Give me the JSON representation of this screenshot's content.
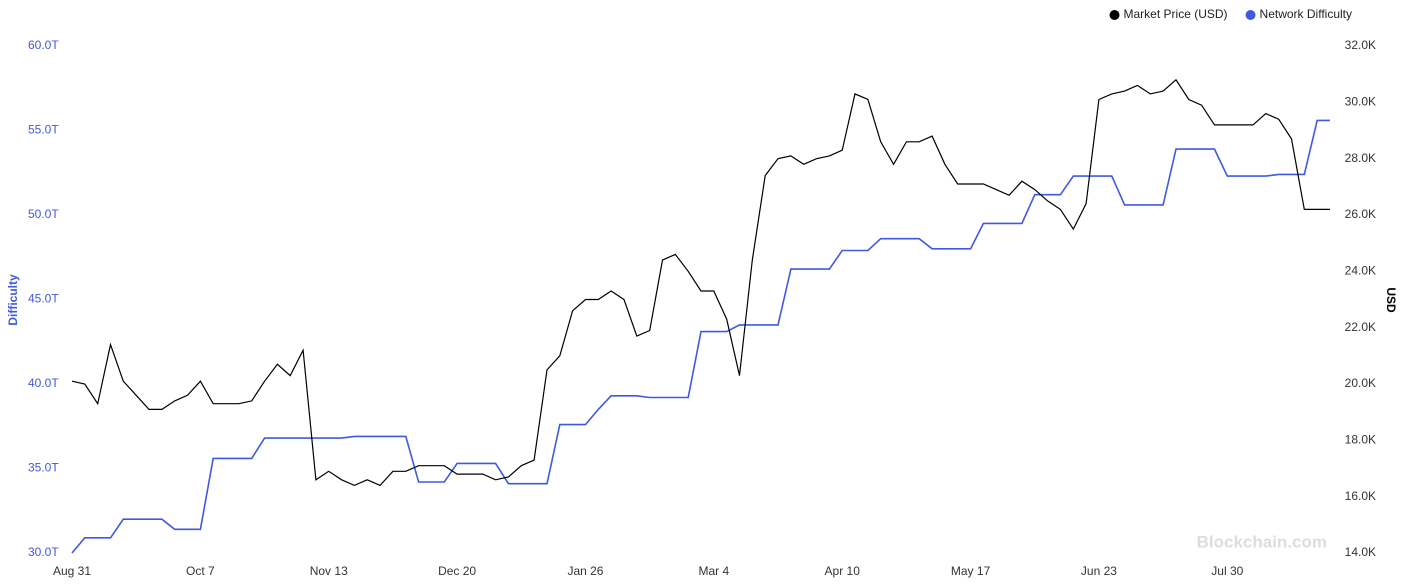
{
  "chart_data": {
    "type": "line",
    "y_axis_label": "Difficulty",
    "y2_axis_label": "USD",
    "watermark": "Blockchain.com",
    "legend": "top-right",
    "categories": [
      "Aug 31",
      null,
      null,
      null,
      null,
      null,
      null,
      null,
      null,
      null,
      "Oct 7",
      null,
      null,
      null,
      null,
      null,
      null,
      null,
      null,
      null,
      "Nov 13",
      null,
      null,
      null,
      null,
      null,
      null,
      null,
      null,
      null,
      "Dec 20",
      null,
      null,
      null,
      null,
      null,
      null,
      null,
      null,
      null,
      "Jan 26",
      null,
      null,
      null,
      null,
      null,
      null,
      null,
      null,
      null,
      "Mar 4",
      null,
      null,
      null,
      null,
      null,
      null,
      null,
      null,
      null,
      "Apr 10",
      null,
      null,
      null,
      null,
      null,
      null,
      null,
      null,
      null,
      "May 17",
      null,
      null,
      null,
      null,
      null,
      null,
      null,
      null,
      null,
      "Jun 23",
      null,
      null,
      null,
      null,
      null,
      null,
      null,
      null,
      null,
      "Jul 30",
      null,
      null,
      null,
      null,
      null,
      null,
      null,
      null
    ],
    "ylim": [
      30,
      60
    ],
    "yticks": [
      {
        "value": 30,
        "label": "30.0T"
      },
      {
        "value": 35,
        "label": "35.0T"
      },
      {
        "value": 40,
        "label": "40.0T"
      },
      {
        "value": 45,
        "label": "45.0T"
      },
      {
        "value": 50,
        "label": "50.0T"
      },
      {
        "value": 55,
        "label": "55.0T"
      },
      {
        "value": 60,
        "label": "60.0T"
      }
    ],
    "y2lim": [
      14000,
      32000
    ],
    "y2ticks": [
      {
        "value": 14000,
        "label": "14.0K"
      },
      {
        "value": 16000,
        "label": "16.0K"
      },
      {
        "value": 18000,
        "label": "18.0K"
      },
      {
        "value": 20000,
        "label": "20.0K"
      },
      {
        "value": 22000,
        "label": "22.0K"
      },
      {
        "value": 24000,
        "label": "24.0K"
      },
      {
        "value": 26000,
        "label": "26.0K"
      },
      {
        "value": 28000,
        "label": "28.0K"
      },
      {
        "value": 30000,
        "label": "30.0K"
      },
      {
        "value": 32000,
        "label": "32.0K"
      }
    ],
    "series": [
      {
        "name": "Market Price (USD)",
        "color": "#000000",
        "axis": "y2",
        "values": [
          20100,
          20000,
          19300,
          21400,
          20100,
          19600,
          19100,
          19100,
          19400,
          19600,
          20100,
          19300,
          19300,
          19300,
          19400,
          20100,
          20700,
          20300,
          21200,
          16600,
          16900,
          16600,
          16400,
          16600,
          16400,
          16900,
          16900,
          17100,
          17100,
          17100,
          16800,
          16800,
          16800,
          16600,
          16700,
          17100,
          17300,
          20500,
          21000,
          22600,
          23000,
          23000,
          23300,
          23000,
          21700,
          21900,
          24400,
          24600,
          24000,
          23300,
          23300,
          22300,
          20300,
          24400,
          27400,
          28000,
          28100,
          27800,
          28000,
          28100,
          28300,
          30300,
          30100,
          28600,
          27800,
          28600,
          28600,
          28800,
          27800,
          27100,
          27100,
          27100,
          26900,
          26700,
          27200,
          26900,
          26500,
          26200,
          25500,
          26400,
          30100,
          30300,
          30400,
          30600,
          30300,
          30400,
          30800,
          30100,
          29900,
          29200,
          29200,
          29200,
          29200,
          29600,
          29400,
          28700,
          26200,
          26200,
          26200
        ]
      },
      {
        "name": "Network Difficulty",
        "color": "#4059e0",
        "values": [
          30.0,
          30.9,
          30.9,
          30.9,
          32.0,
          32.0,
          32.0,
          32.0,
          31.4,
          31.4,
          31.4,
          35.6,
          35.6,
          35.6,
          35.6,
          36.8,
          36.8,
          36.8,
          36.8,
          36.8,
          36.8,
          36.8,
          36.9,
          36.9,
          36.9,
          36.9,
          36.9,
          34.2,
          34.2,
          34.2,
          35.3,
          35.3,
          35.3,
          35.3,
          34.1,
          34.1,
          34.1,
          34.1,
          37.6,
          37.6,
          37.6,
          38.5,
          39.3,
          39.3,
          39.3,
          39.2,
          39.2,
          39.2,
          39.2,
          43.1,
          43.1,
          43.1,
          43.5,
          43.5,
          43.5,
          43.5,
          46.8,
          46.8,
          46.8,
          46.8,
          47.9,
          47.9,
          47.9,
          48.6,
          48.6,
          48.6,
          48.6,
          48.0,
          48.0,
          48.0,
          48.0,
          49.5,
          49.5,
          49.5,
          49.5,
          51.2,
          51.2,
          51.2,
          52.3,
          52.3,
          52.3,
          52.3,
          50.6,
          50.6,
          50.6,
          50.6,
          53.9,
          53.9,
          53.9,
          53.9,
          52.3,
          52.3,
          52.3,
          52.3,
          52.4,
          52.4,
          52.4,
          55.6,
          55.6
        ]
      }
    ]
  }
}
